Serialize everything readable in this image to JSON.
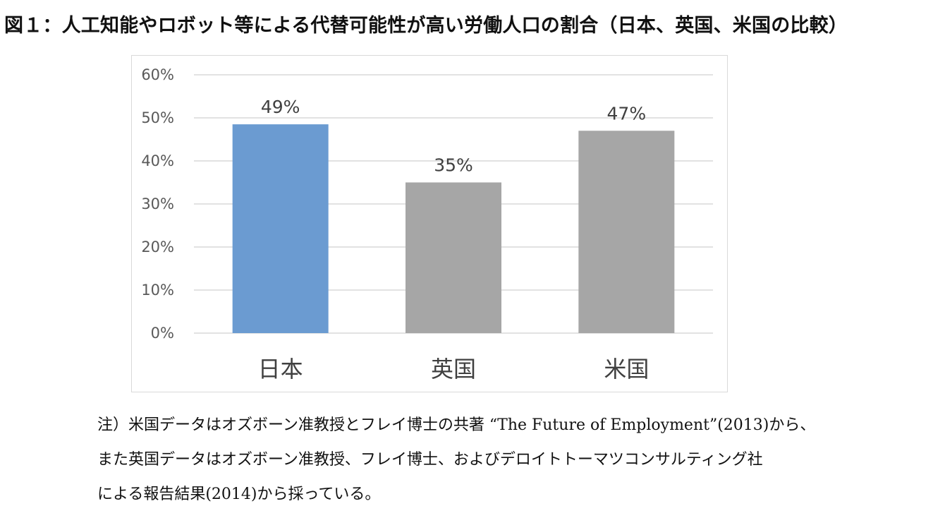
{
  "figure": {
    "title": "図１：人工知能やロボット等による代替可能性が高い労働人口の割合（日本、英国、米国の比較）"
  },
  "chart_data": {
    "type": "bar",
    "title": "",
    "xlabel": "",
    "ylabel": "",
    "categories": [
      "日本",
      "英国",
      "米国"
    ],
    "values": [
      0.485,
      0.35,
      0.47
    ],
    "data_labels": [
      "49%",
      "35%",
      "47%"
    ],
    "ylim": [
      0,
      0.6
    ],
    "yticks": [
      0,
      0.1,
      0.2,
      0.3,
      0.4,
      0.5,
      0.6
    ],
    "ytick_labels": [
      "0%",
      "10%",
      "20%",
      "30%",
      "40%",
      "50%",
      "60%"
    ],
    "grid": true,
    "legend": false,
    "colors": [
      "#6b9bd1",
      "#a6a6a6",
      "#a6a6a6"
    ],
    "gridline_color": "#d9d9d9"
  },
  "note": {
    "lines": [
      "注）米国データはオズボーン准教授とフレイ博士の共著 “The Future of Employment”(2013)から、",
      "また英国データはオズボーン准教授、フレイ博士、およびデロイトトーマツコンサルティング社",
      "による報告結果(2014)から採っている。"
    ]
  }
}
